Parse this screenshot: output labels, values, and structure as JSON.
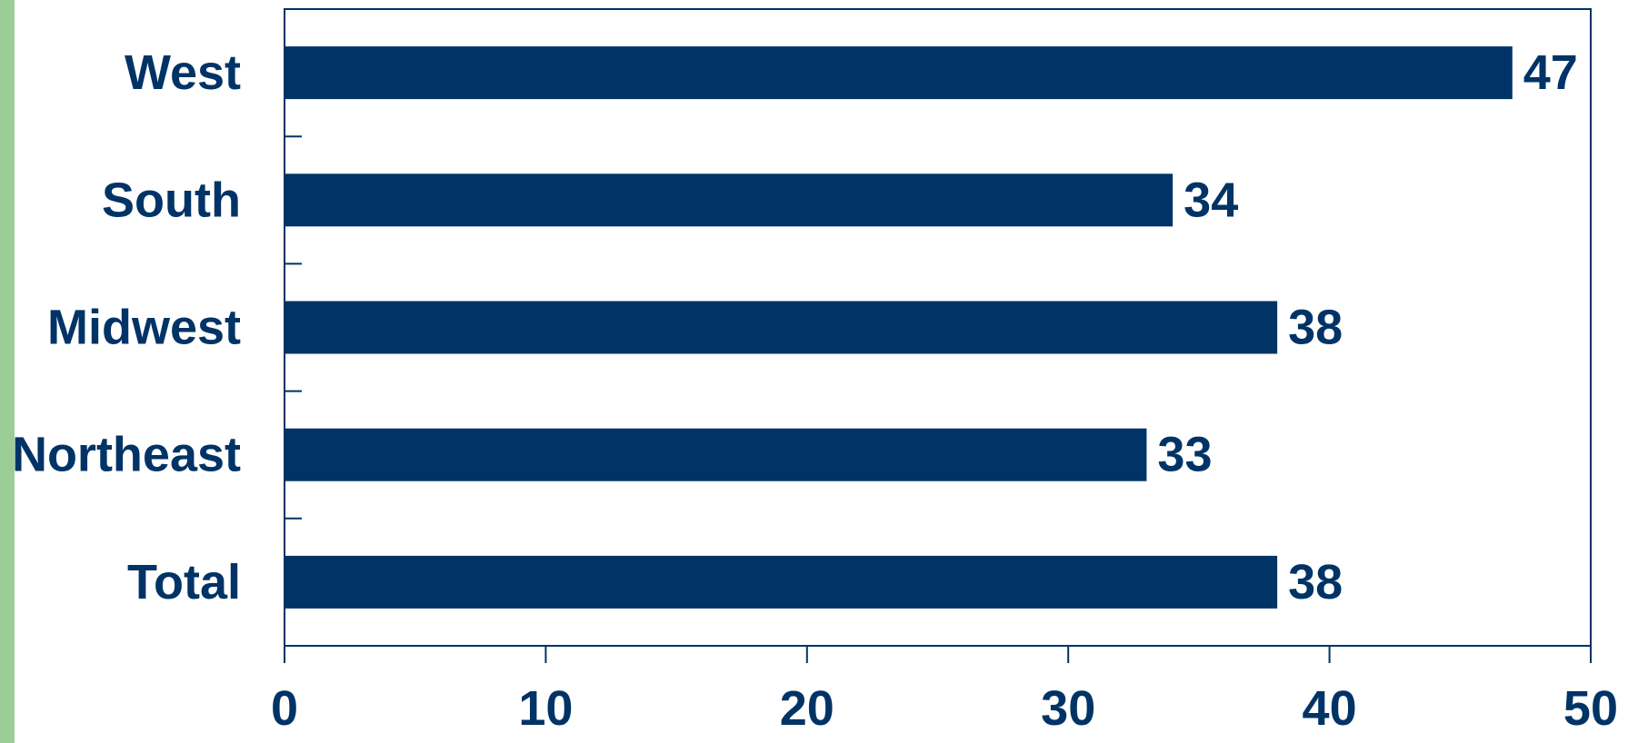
{
  "colors": {
    "bar": "#003366",
    "text": "#003366",
    "axis": "#003366",
    "accent": "#9dcd97"
  },
  "chart_data": {
    "type": "bar",
    "orientation": "horizontal",
    "title": "",
    "xlabel": "",
    "ylabel": "",
    "categories": [
      "West",
      "South",
      "Midwest",
      "Northeast",
      "Total"
    ],
    "values": [
      47,
      34,
      38,
      33,
      38
    ],
    "value_labels": [
      "47",
      "34",
      "38",
      "33",
      "38"
    ],
    "xlim": [
      0,
      50
    ],
    "xticks": [
      0,
      10,
      20,
      30,
      40,
      50
    ],
    "xtick_labels": [
      "0",
      "10",
      "20",
      "30",
      "40",
      "50"
    ],
    "grid": false,
    "legend": "none"
  }
}
